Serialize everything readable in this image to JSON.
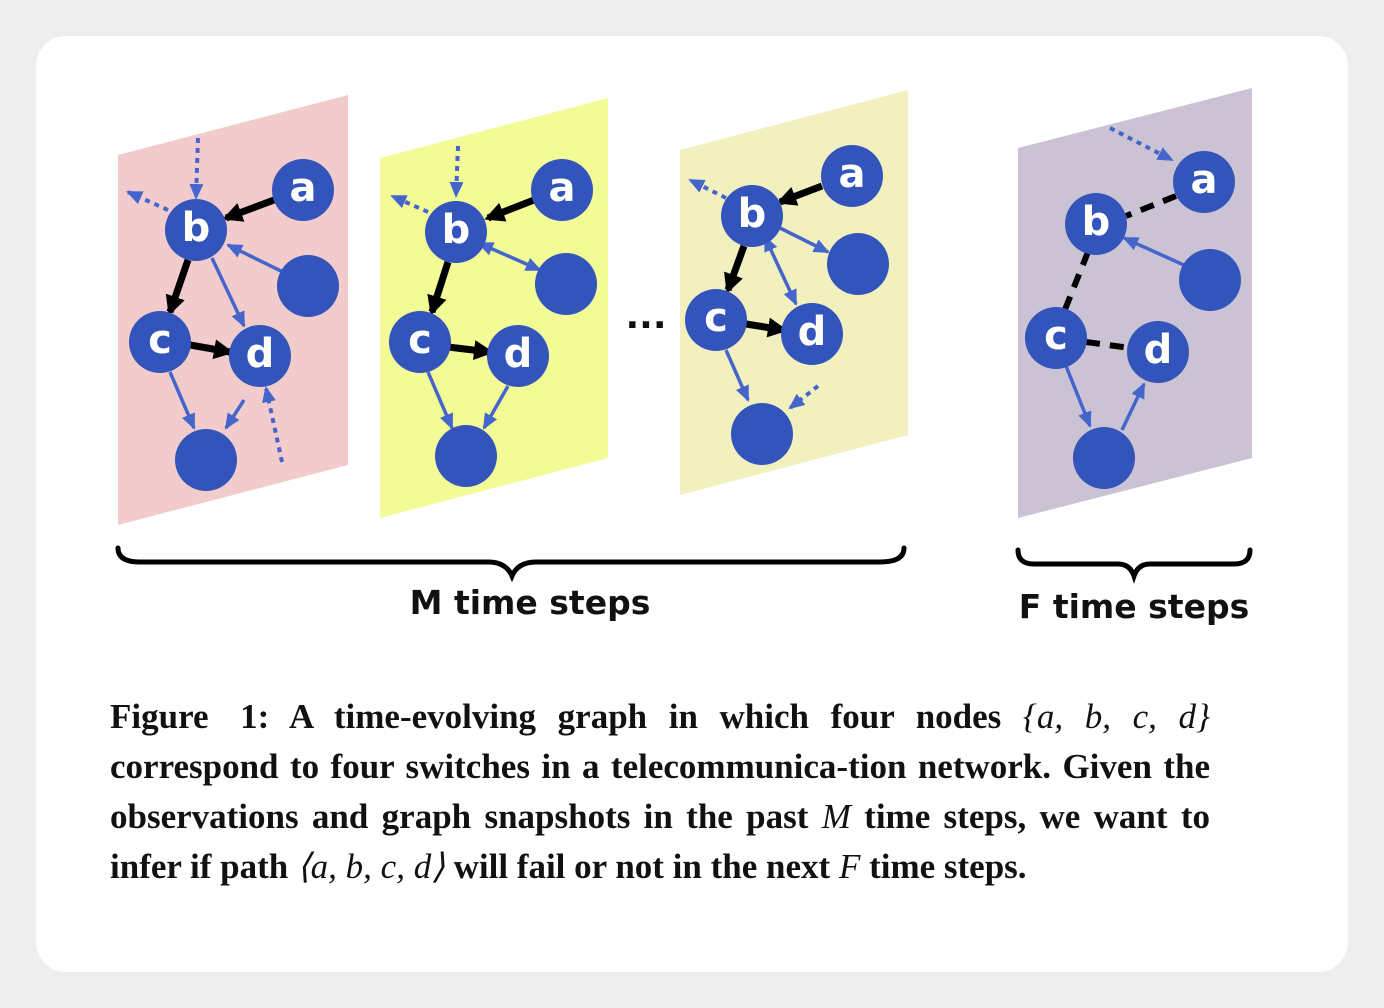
{
  "colors": {
    "panel_1": "#f2cccc",
    "panel_2": "#f2fb96",
    "panel_3": "#f2f0bf",
    "panel_4": "#cbc3d4",
    "node": "#3355bb",
    "edge_blue": "#4466cc",
    "edge_black": "#000000"
  },
  "nodes": {
    "a": "a",
    "b": "b",
    "c": "c",
    "d": "d"
  },
  "ellipsis": "...",
  "brace_labels": {
    "past": "M time steps",
    "future": "F time steps"
  },
  "caption": {
    "label": "Figure 1:",
    "part1": "A time-evolving graph in which four nodes ",
    "set_math": "{a, b, c, d}",
    "part2": " correspond to four switches in a telecommunica-tion network. Given the observations and graph snapshots in the past ",
    "m_math": "M",
    "part3": " time steps, we want to infer if path ",
    "path_math": "⟨a, b, c, d⟩",
    "part4": " will fail or not in the next ",
    "f_math": "F",
    "part5": " time steps."
  }
}
